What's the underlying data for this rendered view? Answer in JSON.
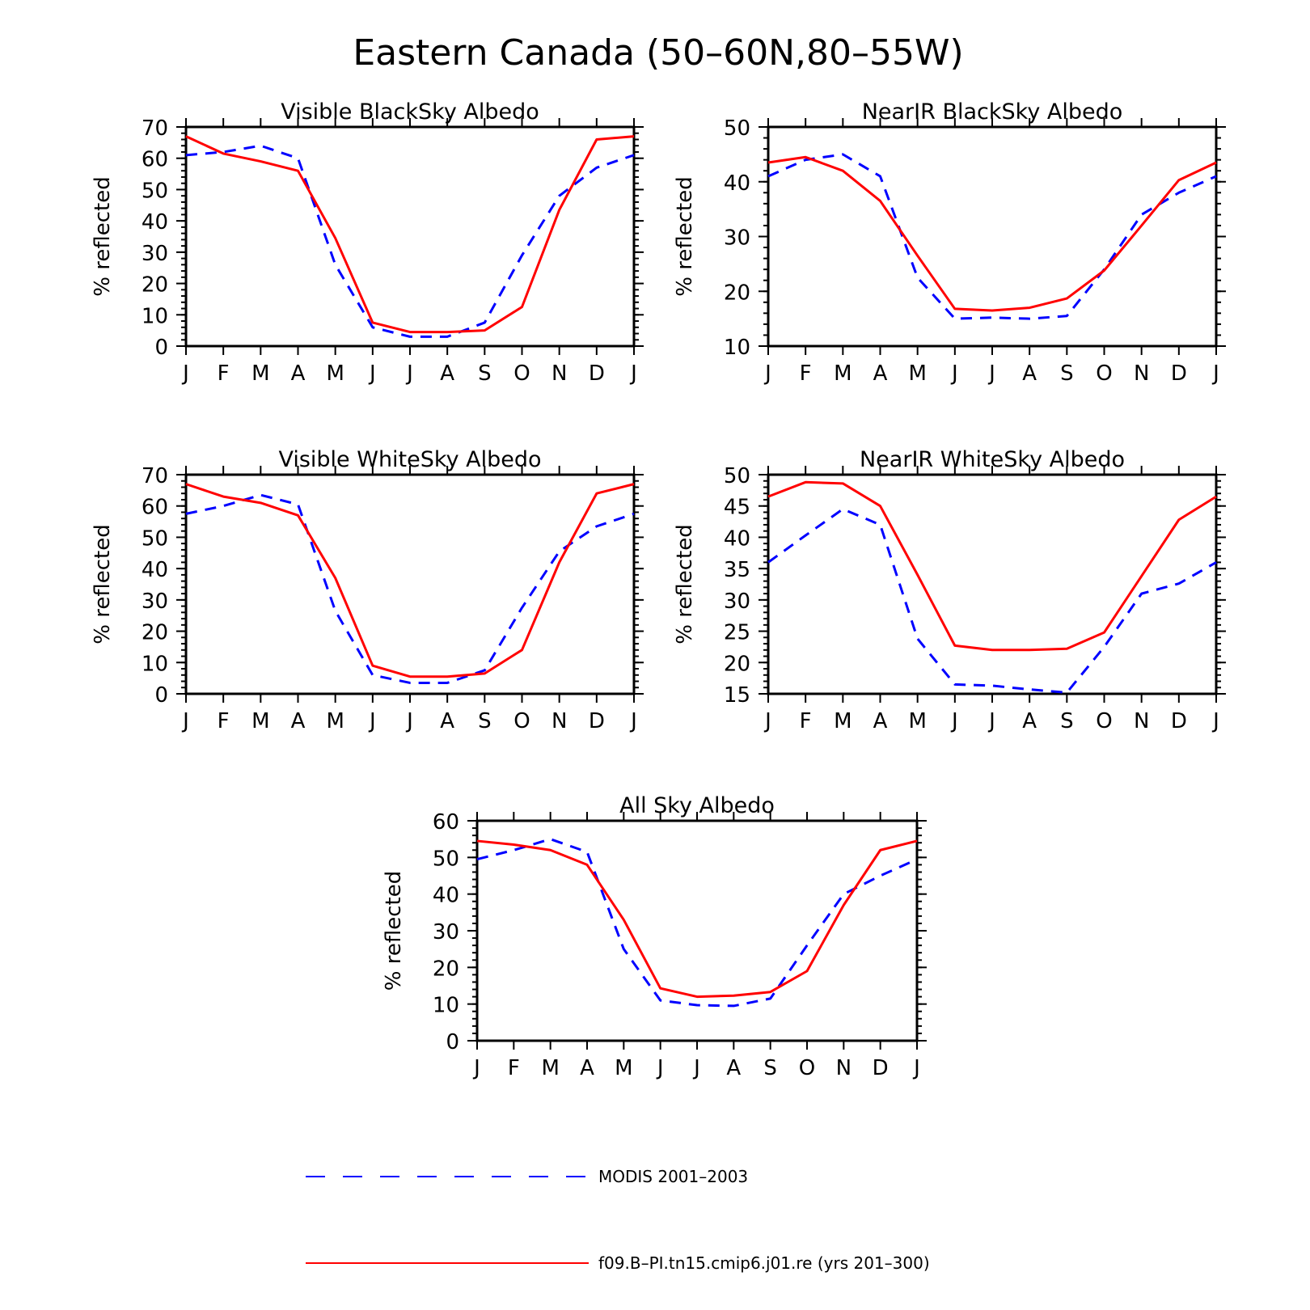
{
  "title": "Eastern Canada (50–60N,80–55W)",
  "chart_data": [
    {
      "type": "line",
      "title": "Visible BlackSky Albedo",
      "xlabel": "",
      "ylabel": "% reflected",
      "categories": [
        "J",
        "F",
        "M",
        "A",
        "M",
        "J",
        "J",
        "A",
        "S",
        "O",
        "N",
        "D",
        "J"
      ],
      "ylim": [
        0,
        70
      ],
      "yticks": [
        0,
        10,
        20,
        30,
        40,
        50,
        60,
        70
      ],
      "series": [
        {
          "name": "MODIS 2001–2003",
          "values": [
            61,
            62,
            64,
            60,
            26,
            6,
            3,
            3,
            7.5,
            29,
            48,
            57,
            61
          ]
        },
        {
          "name": "f09.B–PI.tn15.cmip6.j01.re (yrs 201–300)",
          "values": [
            67,
            61.5,
            59,
            56,
            34.5,
            7.5,
            4.5,
            4.5,
            5,
            12.5,
            43.5,
            66,
            67
          ]
        }
      ]
    },
    {
      "type": "line",
      "title": "NearIR BlackSky Albedo",
      "xlabel": "",
      "ylabel": "% reflected",
      "categories": [
        "J",
        "F",
        "M",
        "A",
        "M",
        "J",
        "J",
        "A",
        "S",
        "O",
        "N",
        "D",
        "J"
      ],
      "ylim": [
        10,
        50
      ],
      "yticks": [
        10,
        20,
        30,
        40,
        50
      ],
      "series": [
        {
          "name": "MODIS 2001–2003",
          "values": [
            41,
            44,
            45,
            41,
            22.5,
            15,
            15.2,
            15,
            15.5,
            24,
            34,
            38,
            41
          ]
        },
        {
          "name": "f09.B–PI.tn15.cmip6.j01.re (yrs 201–300)",
          "values": [
            43.5,
            44.5,
            42,
            36.5,
            26.5,
            16.8,
            16.5,
            17,
            18.7,
            23.8,
            32,
            40.3,
            43.5
          ]
        }
      ]
    },
    {
      "type": "line",
      "title": "Visible WhiteSky Albedo",
      "xlabel": "",
      "ylabel": "% reflected",
      "categories": [
        "J",
        "F",
        "M",
        "A",
        "M",
        "J",
        "J",
        "A",
        "S",
        "O",
        "N",
        "D",
        "J"
      ],
      "ylim": [
        0,
        70
      ],
      "yticks": [
        0,
        10,
        20,
        30,
        40,
        50,
        60,
        70
      ],
      "series": [
        {
          "name": "MODIS 2001–2003",
          "values": [
            57.5,
            60,
            63.5,
            60.5,
            26.5,
            6,
            3.5,
            3.5,
            7.5,
            27.5,
            45.5,
            53.5,
            57.5
          ]
        },
        {
          "name": "f09.B–PI.tn15.cmip6.j01.re (yrs 201–300)",
          "values": [
            67,
            63,
            61,
            57,
            37,
            9,
            5.5,
            5.5,
            6.5,
            14,
            42,
            64,
            67
          ]
        }
      ]
    },
    {
      "type": "line",
      "title": "NearIR WhiteSky Albedo",
      "xlabel": "",
      "ylabel": "% reflected",
      "categories": [
        "J",
        "F",
        "M",
        "A",
        "M",
        "J",
        "J",
        "A",
        "S",
        "O",
        "N",
        "D",
        "J"
      ],
      "ylim": [
        15,
        50
      ],
      "yticks": [
        15,
        20,
        25,
        30,
        35,
        40,
        45,
        50
      ],
      "series": [
        {
          "name": "MODIS 2001–2003",
          "values": [
            36,
            40.3,
            44.5,
            42,
            23.8,
            16.5,
            16.3,
            15.7,
            15.2,
            22.5,
            31,
            32.6,
            36
          ]
        },
        {
          "name": "f09.B–PI.tn15.cmip6.j01.re (yrs 201–300)",
          "values": [
            46.5,
            48.8,
            48.6,
            45,
            34,
            22.7,
            22,
            22,
            22.2,
            24.8,
            33.8,
            42.8,
            46.5
          ]
        }
      ]
    },
    {
      "type": "line",
      "title": "All Sky Albedo",
      "xlabel": "",
      "ylabel": "% reflected",
      "categories": [
        "J",
        "F",
        "M",
        "A",
        "M",
        "J",
        "J",
        "A",
        "S",
        "O",
        "N",
        "D",
        "J"
      ],
      "ylim": [
        0,
        60
      ],
      "yticks": [
        0,
        10,
        20,
        30,
        40,
        50,
        60
      ],
      "series": [
        {
          "name": "MODIS 2001–2003",
          "values": [
            49.5,
            52,
            55,
            51.5,
            25,
            11,
            9.7,
            9.5,
            11.5,
            26,
            40,
            45,
            49.5
          ]
        },
        {
          "name": "f09.B–PI.tn15.cmip6.j01.re (yrs 201–300)",
          "values": [
            54.5,
            53.5,
            52,
            48,
            33,
            14.3,
            12,
            12.3,
            13.3,
            19,
            37,
            52,
            54.5
          ]
        }
      ]
    }
  ],
  "legend": [
    {
      "label": "MODIS 2001–2003",
      "color": "#0000ff",
      "style": "dashed"
    },
    {
      "label": "f09.B–PI.tn15.cmip6.j01.re (yrs 201–300)",
      "color": "#ff0000",
      "style": "solid"
    }
  ],
  "colors": {
    "modis": "#0000ff",
    "model": "#ff0000"
  }
}
